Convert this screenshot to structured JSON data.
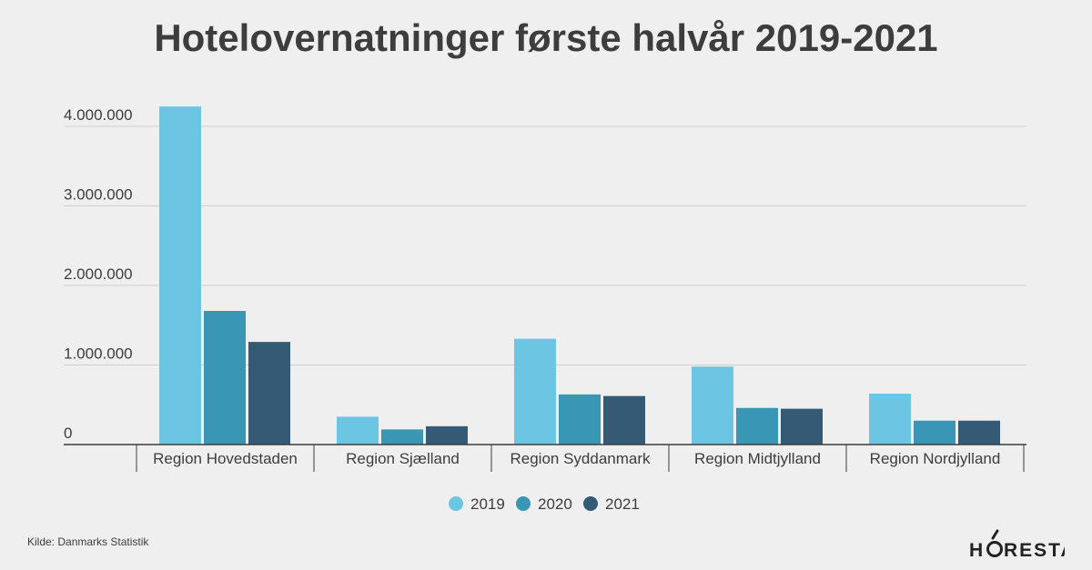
{
  "chart_data": {
    "type": "bar",
    "title": "Hotelovernatninger første halvår 2019-2021",
    "categories": [
      "Region Hovedstaden",
      "Region Sjælland",
      "Region Syddanmark",
      "Region Midtjylland",
      "Region Nordjylland"
    ],
    "series": [
      {
        "name": "2019",
        "color": "#6cc5e2",
        "values": [
          4250000,
          350000,
          1330000,
          980000,
          640000
        ]
      },
      {
        "name": "2020",
        "color": "#3a96b5",
        "values": [
          1680000,
          190000,
          630000,
          460000,
          300000
        ]
      },
      {
        "name": "2021",
        "color": "#355a75",
        "values": [
          1290000,
          230000,
          610000,
          450000,
          300000
        ]
      }
    ],
    "y_ticks": [
      {
        "value": 0,
        "label": "0"
      },
      {
        "value": 1000000,
        "label": "1.000.000"
      },
      {
        "value": 2000000,
        "label": "2.000.000"
      },
      {
        "value": 3000000,
        "label": "3.000.000"
      },
      {
        "value": 4000000,
        "label": "4.000.000"
      }
    ],
    "ylim": [
      0,
      4000000
    ],
    "xlabel": "",
    "ylabel": "",
    "grid": true,
    "legend_position": "bottom-center"
  },
  "footer": {
    "source": "Kilde: Danmarks Statistik",
    "brand": "HORESTA"
  },
  "colors": {
    "axis": "#3d3d3d",
    "grid": "#cfcfcf",
    "text": "#3d3d3d"
  }
}
